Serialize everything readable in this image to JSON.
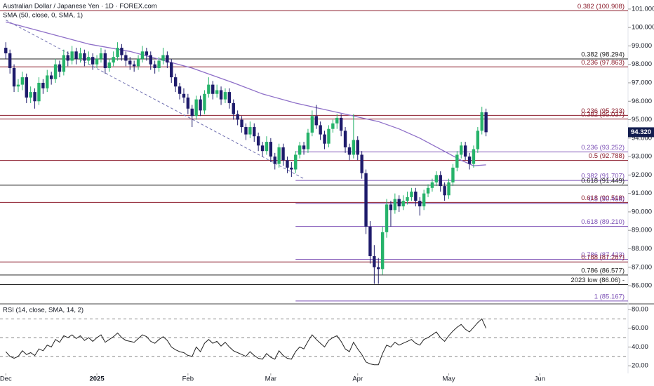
{
  "chart_data": {
    "type": "candlestick",
    "title": "Australian Dollar / Japanese Yen · 1D · FOREX.com",
    "indicator": "SMA (50, close, 0, SMA, 1)",
    "colors": {
      "up": "#26b36a",
      "down": "#1e1b6b",
      "sma": "#8e6fc8",
      "trend": "#6f6fb0",
      "rsi": "#222222"
    },
    "xlim": [
      -1.4,
      150.3
    ],
    "xticks": [
      {
        "value": 0,
        "label": "Dec"
      },
      {
        "value": 22,
        "label": "2025"
      },
      {
        "value": 44,
        "label": "Feb"
      },
      {
        "value": 64,
        "label": "Mar"
      },
      {
        "value": 85,
        "label": "Apr"
      },
      {
        "value": 107,
        "label": "May"
      },
      {
        "value": 129,
        "label": "Jun"
      }
    ],
    "ylim": [
      85.05,
      101.49
    ],
    "yticks": [
      {
        "value": 101,
        "label": "101.000"
      },
      {
        "value": 100,
        "label": "100.000"
      },
      {
        "value": 99,
        "label": "99.000"
      },
      {
        "value": 98,
        "label": "98.000"
      },
      {
        "value": 97,
        "label": "97.000"
      },
      {
        "value": 96,
        "label": "96.000"
      },
      {
        "value": 95,
        "label": "95.000"
      },
      {
        "value": 94,
        "label": "94.000"
      },
      {
        "value": 93,
        "label": "93.000"
      },
      {
        "value": 92,
        "label": "92.000"
      },
      {
        "value": 91,
        "label": "91.000"
      },
      {
        "value": 90,
        "label": "90.000"
      },
      {
        "value": 89,
        "label": "89.000"
      },
      {
        "value": 88,
        "label": "88.000"
      },
      {
        "value": 87,
        "label": "87.000"
      },
      {
        "value": 86,
        "label": "86.000"
      }
    ],
    "price_label": {
      "value": 94.32,
      "label": "94.320"
    },
    "ohlc": [
      [
        98.9,
        99.2,
        98.3,
        98.6
      ],
      [
        98.6,
        98.8,
        97.5,
        97.8
      ],
      [
        97.8,
        98.0,
        96.5,
        96.8
      ],
      [
        96.8,
        97.2,
        96.5,
        96.9
      ],
      [
        96.9,
        97.6,
        96.6,
        97.3
      ],
      [
        97.3,
        97.5,
        95.9,
        96.2
      ],
      [
        96.2,
        96.8,
        95.9,
        96.5
      ],
      [
        96.5,
        96.7,
        95.6,
        96.0
      ],
      [
        96.0,
        97.3,
        95.8,
        97.0
      ],
      [
        97.0,
        97.2,
        96.4,
        96.7
      ],
      [
        96.7,
        97.7,
        96.5,
        97.4
      ],
      [
        97.4,
        97.6,
        96.9,
        97.2
      ],
      [
        97.2,
        98.3,
        97.0,
        98.0
      ],
      [
        98.0,
        98.2,
        97.3,
        97.6
      ],
      [
        97.6,
        98.8,
        97.4,
        98.5
      ],
      [
        98.5,
        98.7,
        97.9,
        98.2
      ],
      [
        98.2,
        99.0,
        98.0,
        98.7
      ],
      [
        98.7,
        98.9,
        98.0,
        98.3
      ],
      [
        98.3,
        98.9,
        98.1,
        98.6
      ],
      [
        98.6,
        98.8,
        97.9,
        98.2
      ],
      [
        98.2,
        98.7,
        98.0,
        98.4
      ],
      [
        98.4,
        98.6,
        97.7,
        98.0
      ],
      [
        98.0,
        98.5,
        97.8,
        98.3
      ],
      [
        98.3,
        98.9,
        98.1,
        98.6
      ],
      [
        98.6,
        98.8,
        97.5,
        97.8
      ],
      [
        97.8,
        98.3,
        97.6,
        98.1
      ],
      [
        98.1,
        98.7,
        97.9,
        98.4
      ],
      [
        98.4,
        99.2,
        98.2,
        98.9
      ],
      [
        98.9,
        99.1,
        98.2,
        98.5
      ],
      [
        98.5,
        98.7,
        97.9,
        98.2
      ],
      [
        98.2,
        98.4,
        97.7,
        98.0
      ],
      [
        98.0,
        98.2,
        97.6,
        97.9
      ],
      [
        97.9,
        98.5,
        97.7,
        98.3
      ],
      [
        98.3,
        99.0,
        98.1,
        98.7
      ],
      [
        98.7,
        98.9,
        98.2,
        98.5
      ],
      [
        98.5,
        98.7,
        97.7,
        98.0
      ],
      [
        98.0,
        98.2,
        97.5,
        97.8
      ],
      [
        97.8,
        98.4,
        97.6,
        98.2
      ],
      [
        98.2,
        98.9,
        98.0,
        98.5
      ],
      [
        98.5,
        98.7,
        97.8,
        98.1
      ],
      [
        98.1,
        98.3,
        97.0,
        97.3
      ],
      [
        97.3,
        97.5,
        96.5,
        96.8
      ],
      [
        96.8,
        97.0,
        96.1,
        96.4
      ],
      [
        96.4,
        96.7,
        95.9,
        96.2
      ],
      [
        96.2,
        96.4,
        95.3,
        95.6
      ],
      [
        95.6,
        95.8,
        94.6,
        95.2
      ],
      [
        95.2,
        96.3,
        95.0,
        96.1
      ],
      [
        96.1,
        96.3,
        95.2,
        95.5
      ],
      [
        95.5,
        96.6,
        95.3,
        96.4
      ],
      [
        96.4,
        97.3,
        96.2,
        96.9
      ],
      [
        96.9,
        97.1,
        96.1,
        96.4
      ],
      [
        96.4,
        96.9,
        96.2,
        96.6
      ],
      [
        96.6,
        96.8,
        95.8,
        96.1
      ],
      [
        96.1,
        96.7,
        95.9,
        96.5
      ],
      [
        96.5,
        96.7,
        95.6,
        95.9
      ],
      [
        95.9,
        96.1,
        95.0,
        95.3
      ],
      [
        95.3,
        95.5,
        94.7,
        95.0
      ],
      [
        95.0,
        95.2,
        94.3,
        94.6
      ],
      [
        94.6,
        94.8,
        93.9,
        94.2
      ],
      [
        94.2,
        94.9,
        94.0,
        94.6
      ],
      [
        94.6,
        94.8,
        93.8,
        94.1
      ],
      [
        94.1,
        94.3,
        93.3,
        93.6
      ],
      [
        93.6,
        93.8,
        93.0,
        93.3
      ],
      [
        93.3,
        94.1,
        93.1,
        93.8
      ],
      [
        93.8,
        94.0,
        92.7,
        93.0
      ],
      [
        93.0,
        93.2,
        92.3,
        92.6
      ],
      [
        92.6,
        93.7,
        92.4,
        93.5
      ],
      [
        93.5,
        93.7,
        92.5,
        92.8
      ],
      [
        92.8,
        93.0,
        92.1,
        92.4
      ],
      [
        92.4,
        92.7,
        91.9,
        92.3
      ],
      [
        92.3,
        93.3,
        92.1,
        93.1
      ],
      [
        93.1,
        93.8,
        92.9,
        93.6
      ],
      [
        93.6,
        93.8,
        93.1,
        93.4
      ],
      [
        93.4,
        94.5,
        93.2,
        94.3
      ],
      [
        94.3,
        95.5,
        94.1,
        95.2
      ],
      [
        95.2,
        95.8,
        94.5,
        94.7
      ],
      [
        94.7,
        94.9,
        93.9,
        94.2
      ],
      [
        94.2,
        94.4,
        93.4,
        93.7
      ],
      [
        93.7,
        94.7,
        93.5,
        94.5
      ],
      [
        94.5,
        95.0,
        94.3,
        94.8
      ],
      [
        94.8,
        95.3,
        94.5,
        95.1
      ],
      [
        95.1,
        95.3,
        94.1,
        94.4
      ],
      [
        94.4,
        94.6,
        93.2,
        93.5
      ],
      [
        93.5,
        93.7,
        92.8,
        93.1
      ],
      [
        93.1,
        95.3,
        92.9,
        93.9
      ],
      [
        93.9,
        94.1,
        92.8,
        93.1
      ],
      [
        93.1,
        93.3,
        91.8,
        92.1
      ],
      [
        92.1,
        92.3,
        88.8,
        89.2
      ],
      [
        89.2,
        89.5,
        87.2,
        87.6
      ],
      [
        87.6,
        88.2,
        86.1,
        87.0
      ],
      [
        87.0,
        87.5,
        86.1,
        86.9
      ],
      [
        86.9,
        89.2,
        86.6,
        88.9
      ],
      [
        88.9,
        90.7,
        88.6,
        90.4
      ],
      [
        90.4,
        90.6,
        89.2,
        90.1
      ],
      [
        90.1,
        91.0,
        89.9,
        90.7
      ],
      [
        90.7,
        90.9,
        90.0,
        90.3
      ],
      [
        90.3,
        90.9,
        90.1,
        90.6
      ],
      [
        90.6,
        91.1,
        90.4,
        90.8
      ],
      [
        90.8,
        91.3,
        90.6,
        91.1
      ],
      [
        91.1,
        91.3,
        90.3,
        90.6
      ],
      [
        90.6,
        90.8,
        89.8,
        90.3
      ],
      [
        90.3,
        91.2,
        90.1,
        91.0
      ],
      [
        91.0,
        91.5,
        90.8,
        91.3
      ],
      [
        91.3,
        91.8,
        91.1,
        91.6
      ],
      [
        91.6,
        92.2,
        91.4,
        92.0
      ],
      [
        92.0,
        92.2,
        91.1,
        91.4
      ],
      [
        91.4,
        91.6,
        90.6,
        90.9
      ],
      [
        90.9,
        91.8,
        90.7,
        91.6
      ],
      [
        91.6,
        92.6,
        91.4,
        92.4
      ],
      [
        92.4,
        93.3,
        92.2,
        93.1
      ],
      [
        93.1,
        93.8,
        92.9,
        93.6
      ],
      [
        93.6,
        93.8,
        92.8,
        93.0
      ],
      [
        93.0,
        93.2,
        92.3,
        92.6
      ],
      [
        92.6,
        93.6,
        92.4,
        93.4
      ],
      [
        93.4,
        94.6,
        93.2,
        94.4
      ],
      [
        94.4,
        95.7,
        94.2,
        95.4
      ],
      [
        95.4,
        95.6,
        94.1,
        94.32
      ]
    ],
    "sma": {
      "x": [
        0,
        10,
        20,
        30,
        40,
        45,
        55,
        62,
        70,
        78,
        84,
        90,
        95,
        100,
        105,
        110,
        113,
        116
      ],
      "values": [
        100.3,
        99.7,
        99.1,
        98.7,
        98.1,
        97.8,
        97.0,
        96.4,
        95.9,
        95.5,
        95.2,
        94.9,
        94.5,
        94.0,
        93.4,
        92.8,
        92.5,
        92.55
      ]
    },
    "trendline": {
      "x": [
        0,
        72
      ],
      "values": [
        100.4,
        91.8
      ]
    },
    "levels": [
      {
        "label": "0.382 (100.908)",
        "value": 100.908,
        "color": "#8b1c2b",
        "start": -1.4
      },
      {
        "label": "0.382 (98.294)",
        "value": 98.294,
        "color": "#222222",
        "start": -1.4
      },
      {
        "label": "0.236 (97.863)",
        "value": 97.863,
        "color": "#8b1c2b",
        "start": -1.4
      },
      {
        "label": "0.236 (95.233)",
        "value": 95.233,
        "color": "#8b1c2b",
        "start": -1.4
      },
      {
        "label": "0.382 (95.037)",
        "value": 95.037,
        "color": "#8b1c2b",
        "start": -1.4
      },
      {
        "label": "0.236 (93.252)",
        "value": 93.252,
        "color": "#7b4fb5",
        "start": 70
      },
      {
        "label": "0.5 (92.788)",
        "value": 92.788,
        "color": "#8b1c2b",
        "start": -1.4
      },
      {
        "label": "0.382 (91.707)",
        "value": 91.707,
        "color": "#7b4fb5",
        "start": 70
      },
      {
        "label": "0.618 (91.449)",
        "value": 91.449,
        "color": "#222222",
        "start": -1.4
      },
      {
        "label": "0.618 (90.518)",
        "value": 90.518,
        "color": "#8b1c2b",
        "start": -1.4
      },
      {
        "label": "0.5 (90.458)",
        "value": 90.458,
        "color": "#7b4fb5",
        "start": 70
      },
      {
        "label": "0.618 (89.210)",
        "value": 89.21,
        "color": "#7b4fb5",
        "start": 70
      },
      {
        "label": "0.786 (87.423)",
        "value": 87.423,
        "color": "#7b4fb5",
        "start": 70
      },
      {
        "label": "0.788 (87.287)",
        "value": 87.287,
        "color": "#8b1c2b",
        "start": -1.4
      },
      {
        "label": "0.786 (86.577)",
        "value": 86.577,
        "color": "#222222",
        "start": -1.4
      },
      {
        "label": "2023 low (86.06) -",
        "value": 86.06,
        "color": "#222222",
        "start": -1.4
      },
      {
        "label": "1 (85.167)",
        "value": 85.167,
        "color": "#7b4fb5",
        "start": 70
      }
    ],
    "rsi": {
      "label": "RSI (14, close, SMA, 14, 2)",
      "ylim": [
        11.9,
        85.2
      ],
      "yticks": [
        {
          "value": 80,
          "label": "80.00"
        },
        {
          "value": 60,
          "label": "60.00"
        },
        {
          "value": 40,
          "label": "40.00"
        },
        {
          "value": 20,
          "label": "20.00"
        }
      ],
      "bands": [
        70,
        50,
        30
      ],
      "values": [
        35,
        30,
        28,
        30,
        36,
        32,
        34,
        31,
        38,
        36,
        42,
        40,
        48,
        45,
        52,
        50,
        53,
        49,
        52,
        47,
        50,
        46,
        50,
        53,
        45,
        48,
        51,
        55,
        50,
        47,
        46,
        45,
        49,
        53,
        51,
        46,
        44,
        48,
        51,
        47,
        40,
        37,
        35,
        34,
        31,
        30,
        40,
        35,
        44,
        48,
        44,
        46,
        41,
        45,
        40,
        36,
        34,
        32,
        30,
        35,
        31,
        28,
        27,
        33,
        29,
        27,
        36,
        31,
        28,
        27,
        35,
        40,
        38,
        46,
        53,
        48,
        44,
        40,
        47,
        50,
        52,
        46,
        38,
        35,
        45,
        38,
        32,
        24,
        22,
        21,
        21,
        33,
        42,
        40,
        45,
        42,
        44,
        46,
        48,
        44,
        42,
        48,
        50,
        53,
        56,
        50,
        46,
        52,
        57,
        61,
        64,
        59,
        56,
        61,
        66,
        70,
        60
      ]
    }
  }
}
